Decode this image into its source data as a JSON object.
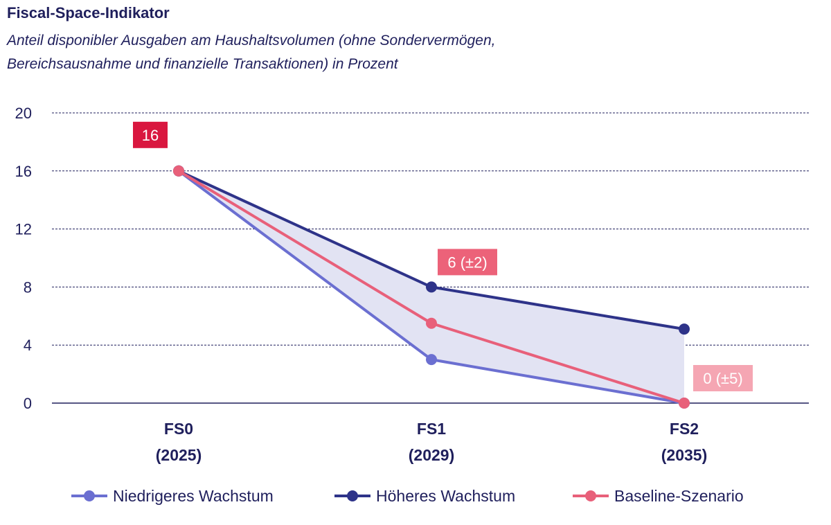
{
  "chart_data": {
    "type": "line",
    "title": "Fiscal-Space-Indikator",
    "subtitle_lines": [
      "Anteil disponibler Ausgaben am Haushaltsvolumen (ohne Sondervermögen,",
      "Bereichsausnahme und finanzielle Transaktionen) in Prozent"
    ],
    "categories": [
      {
        "name": "FS0",
        "year": "(2025)"
      },
      {
        "name": "FS1",
        "year": "(2029)"
      },
      {
        "name": "FS2",
        "year": "(2035)"
      }
    ],
    "ylim": [
      0,
      20
    ],
    "yticks": [
      "0",
      "4",
      "8",
      "12",
      "16",
      "20"
    ],
    "yticks_values": [
      0,
      4,
      8,
      12,
      16,
      20
    ],
    "grid": true,
    "series": [
      {
        "name": "Niedrigeres Wachstum",
        "color": "#6b6fd1",
        "values": [
          16,
          3,
          0
        ]
      },
      {
        "name": "Höheres Wachstum",
        "color": "#2e3389",
        "values": [
          16,
          8,
          5.1
        ]
      },
      {
        "name": "Baseline-Szenario",
        "color": "#e8607a",
        "values": [
          16,
          5.5,
          0
        ]
      }
    ],
    "band_color": "#e2e3f3",
    "annotations": [
      {
        "text": "16",
        "category_index": 0,
        "value": 16,
        "bg": "#d9173f"
      },
      {
        "text": "6 (±2)",
        "category_index": 1,
        "value": 8,
        "bg": "#ec6279"
      },
      {
        "text": "0 (±5)",
        "category_index": 2,
        "value": 0,
        "bg": "#f5a6b3"
      }
    ],
    "legend_position": "bottom"
  }
}
